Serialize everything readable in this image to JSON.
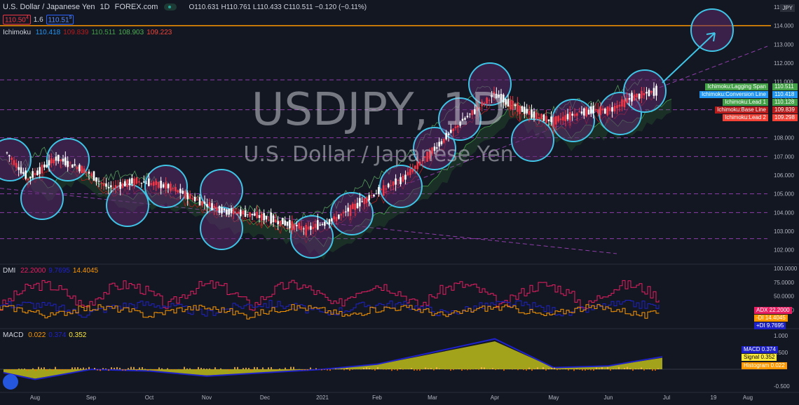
{
  "header": {
    "symbol": "U.S. Dollar / Japanese Yen",
    "interval": "1D",
    "exchange": "FOREX.com",
    "ohlc": "O110.631 H110.761 L110.433 C110.511 −0.120 (−0.11%)",
    "bid": "110.50",
    "bid_small": "4",
    "spread": "1.6",
    "ask": "110.51",
    "ask_small": "9",
    "ichimoku_label": "Ichimoku",
    "ichimoku_values": [
      "110.418",
      "109.839",
      "110.511",
      "108.903",
      "109.223"
    ],
    "ichimoku_value_colors": [
      "#2196f3",
      "#b71c1c",
      "#43a047",
      "#4caf50",
      "#f44336"
    ],
    "dmi_label": "DMI",
    "dmi_values": [
      "22.2000",
      "9.7695",
      "14.4045"
    ],
    "dmi_value_colors": [
      "#e91e63",
      "#1e22c8",
      "#ff9800"
    ],
    "macd_label": "MACD",
    "macd_values": [
      "0.022",
      "0.374",
      "0.352"
    ],
    "macd_value_colors": [
      "#ff9800",
      "#1e22c8",
      "#ffeb3b"
    ],
    "currency": "JPY"
  },
  "watermark": {
    "title": "USDJPY, 1D",
    "subtitle": "U.S. Dollar / Japanese Yen"
  },
  "colors": {
    "background": "#131722",
    "up": "#ffffff",
    "down": "#f23645",
    "circle_fill": "#5b2a6b",
    "circle_stroke": "#40c4e6",
    "orange_line": "#ff9800",
    "purple_dash": "#b84ad6",
    "adx": "#e91e63",
    "minus_di": "#ff9800",
    "plus_di": "#1e22c8",
    "macd": "#1e22c8",
    "signal": "#d4d21a"
  },
  "chart_data": [
    {
      "type": "candlestick",
      "title": "USDJPY, 1D",
      "ylim": [
        101.5,
        115
      ],
      "y_ticks": [
        "102.000",
        "103.000",
        "104.000",
        "105.000",
        "106.000",
        "107.000",
        "108.000",
        "109.000",
        "110.000",
        "111.000",
        "112.000",
        "113.000",
        "114.000",
        "115.000"
      ],
      "x_ticks": [
        "Aug",
        "Sep",
        "Oct",
        "Nov",
        "Dec",
        "2021",
        "Feb",
        "Mar",
        "Apr",
        "May",
        "Jun",
        "Jul",
        "19",
        "Aug"
      ],
      "resistance_level": 114.0,
      "price_path": [
        [
          "Jul",
          107.2
        ],
        [
          "Aug",
          105.8
        ],
        [
          "Aug",
          106.9
        ],
        [
          "Sep",
          106.3
        ],
        [
          "Sep",
          105.3
        ],
        [
          "Oct",
          105.7
        ],
        [
          "Oct",
          105.4
        ],
        [
          "Nov",
          104.6
        ],
        [
          "Nov",
          104.1
        ],
        [
          "Dec",
          103.9
        ],
        [
          "Dec",
          103.5
        ],
        [
          "2021",
          103.1
        ],
        [
          "2021",
          103.7
        ],
        [
          "Feb",
          104.9
        ],
        [
          "Feb",
          105.8
        ],
        [
          "Mar",
          107.4
        ],
        [
          "Mar",
          108.9
        ],
        [
          "Apr",
          110.3
        ],
        [
          "Apr",
          109.3
        ],
        [
          "May",
          108.9
        ],
        [
          "May",
          109.4
        ],
        [
          "Jun",
          109.5
        ],
        [
          "Jun",
          110.2
        ],
        [
          "Jul",
          110.5
        ]
      ],
      "labels": [
        {
          "name": "Ichimoku:Lagging Span",
          "value": "110.511",
          "color": "#43a047"
        },
        {
          "name": "Ichimoku:Conversion Line",
          "value": "110.418",
          "color": "#2196f3"
        },
        {
          "name": "Ichimoku:Lead 1",
          "value": "110.128",
          "color": "#43a047"
        },
        {
          "name": "Ichimoku:Base Line",
          "value": "109.839",
          "color": "#b71c1c"
        },
        {
          "name": "Ichimoku:Lead 2",
          "value": "109.298",
          "color": "#f44336"
        }
      ]
    },
    {
      "type": "line",
      "title": "DMI",
      "ylim": [
        0,
        100
      ],
      "y_ticks": [
        "100.0000",
        "75.0000",
        "50.0000",
        "25.0000"
      ],
      "labels": [
        {
          "name": "ADX",
          "value": "22.2000",
          "color": "#e91e63"
        },
        {
          "name": "-DI",
          "value": "14.4045",
          "color": "#ff9800"
        },
        {
          "name": "+DI",
          "value": "9.7695",
          "color": "#1e22c8"
        }
      ]
    },
    {
      "type": "area",
      "title": "MACD",
      "ylim": [
        -0.6,
        1.1
      ],
      "y_ticks": [
        "1.000",
        "0.500",
        "-0.500"
      ],
      "macd_path": [
        [
          "Jul",
          -0.1
        ],
        [
          "Aug",
          -0.3
        ],
        [
          "Sep",
          0.0
        ],
        [
          "Oct",
          -0.05
        ],
        [
          "Nov",
          -0.2
        ],
        [
          "Dec",
          -0.1
        ],
        [
          "2021",
          0.0
        ],
        [
          "Feb",
          0.15
        ],
        [
          "Mar",
          0.5
        ],
        [
          "Apr",
          0.9
        ],
        [
          "May",
          0.05
        ],
        [
          "Jun",
          0.1
        ],
        [
          "Jul",
          0.37
        ]
      ],
      "labels": [
        {
          "name": "MACD",
          "value": "0.374",
          "color": "#1e22c8"
        },
        {
          "name": "Signal",
          "value": "0.352",
          "color": "#ffeb3b"
        },
        {
          "name": "Histogram",
          "value": "0.022",
          "color": "#ff9800"
        }
      ]
    }
  ]
}
